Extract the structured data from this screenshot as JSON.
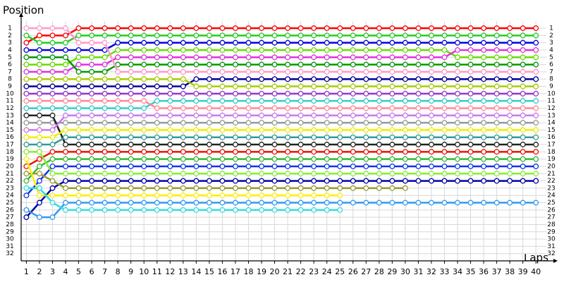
{
  "chart_data": {
    "type": "line",
    "y_label": "Position",
    "x_label": "Laps",
    "x": [
      1,
      2,
      3,
      4,
      5,
      6,
      7,
      8,
      9,
      10,
      11,
      12,
      13,
      14,
      15,
      16,
      17,
      18,
      19,
      20,
      21,
      22,
      23,
      24,
      25,
      26,
      27,
      28,
      29,
      30,
      31,
      32,
      33,
      34,
      35,
      36,
      37,
      38,
      39,
      40
    ],
    "xlim": [
      0.6,
      40.8
    ],
    "xticks": [
      1,
      2,
      3,
      4,
      5,
      6,
      7,
      8,
      9,
      10,
      11,
      12,
      13,
      14,
      15,
      16,
      17,
      18,
      19,
      20,
      21,
      22,
      23,
      24,
      25,
      26,
      27,
      28,
      29,
      30,
      31,
      32,
      33,
      34,
      35,
      36,
      37,
      38,
      39,
      40
    ],
    "ylim": [
      0,
      33
    ],
    "y_inverted": true,
    "yticks": [
      1,
      2,
      3,
      4,
      5,
      6,
      7,
      8,
      9,
      10,
      11,
      12,
      13,
      14,
      15,
      16,
      17,
      18,
      19,
      20,
      21,
      22,
      23,
      24,
      25,
      26,
      27,
      28,
      29,
      30,
      31,
      32
    ],
    "grid": true,
    "series": [
      {
        "color": "#ff0000",
        "values": [
          3,
          2,
          2,
          2,
          1,
          1,
          1,
          1,
          1,
          1,
          1,
          1,
          1,
          1,
          1,
          1,
          1,
          1,
          1,
          1,
          1,
          1,
          1,
          1,
          1,
          1,
          1,
          1,
          1,
          1,
          1,
          1,
          1,
          1,
          1,
          1,
          1,
          1,
          1,
          1
        ]
      },
      {
        "color": "#22cc22",
        "values": [
          2,
          3,
          3,
          3,
          2,
          2,
          2,
          2,
          2,
          2,
          2,
          2,
          2,
          2,
          2,
          2,
          2,
          2,
          2,
          2,
          2,
          2,
          2,
          2,
          2,
          2,
          2,
          2,
          2,
          2,
          2,
          2,
          2,
          2,
          2,
          2,
          2,
          2,
          2,
          2
        ]
      },
      {
        "color": "#0000dd",
        "values": [
          4,
          4,
          4,
          4,
          4,
          4,
          4,
          3,
          3,
          3,
          3,
          3,
          3,
          3,
          3,
          3,
          3,
          3,
          3,
          3,
          3,
          3,
          3,
          3,
          3,
          3,
          3,
          3,
          3,
          3,
          3,
          3,
          3,
          3,
          3,
          3,
          3,
          3,
          3,
          3
        ]
      },
      {
        "color": "#66dd00",
        "values": [
          6,
          6,
          6,
          6,
          5,
          5,
          5,
          4,
          4,
          4,
          4,
          4,
          4,
          4,
          4,
          4,
          4,
          4,
          4,
          4,
          4,
          4,
          4,
          4,
          4,
          4,
          4,
          4,
          4,
          4,
          4,
          4,
          4,
          5,
          5,
          5,
          5,
          5,
          5,
          5
        ]
      },
      {
        "color": "#dd33dd",
        "values": [
          7,
          7,
          7,
          7,
          6,
          6,
          6,
          5,
          5,
          5,
          5,
          5,
          5,
          5,
          5,
          5,
          5,
          5,
          5,
          5,
          5,
          5,
          5,
          5,
          5,
          5,
          5,
          5,
          5,
          5,
          5,
          5,
          5,
          4,
          4,
          4,
          4,
          4,
          4,
          4
        ]
      },
      {
        "color": "#009900",
        "values": [
          5,
          5,
          5,
          5,
          7,
          7,
          7,
          6,
          6,
          6,
          6,
          6,
          6,
          6,
          6,
          6,
          6,
          6,
          6,
          6,
          6,
          6,
          6,
          6,
          6,
          6,
          6,
          6,
          6,
          6,
          6,
          6,
          6,
          6,
          6,
          6,
          6,
          6,
          6,
          6
        ]
      },
      {
        "color": "#ff99cc",
        "values": [
          1,
          1,
          1,
          1,
          3,
          3,
          3,
          7,
          7,
          7,
          7,
          7,
          7,
          7,
          7,
          7,
          7,
          7,
          7,
          7,
          7,
          7,
          7,
          7,
          7,
          7,
          7,
          7,
          7,
          7,
          7,
          7,
          7,
          7,
          7,
          7,
          7,
          7,
          7,
          7
        ]
      },
      {
        "color": "#000099",
        "values": [
          9,
          9,
          9,
          9,
          9,
          9,
          9,
          9,
          9,
          9,
          9,
          9,
          9,
          8,
          8,
          8,
          8,
          8,
          8,
          8,
          8,
          8,
          8,
          8,
          8,
          8,
          8,
          8,
          8,
          8,
          8,
          8,
          8,
          8,
          8,
          8,
          8,
          8,
          8,
          8
        ]
      },
      {
        "color": "#aacc00",
        "values": [
          8,
          8,
          8,
          8,
          8,
          8,
          8,
          8,
          8,
          8,
          8,
          8,
          8,
          9,
          9,
          9,
          9,
          9,
          9,
          9,
          9,
          9,
          9,
          9,
          9,
          9,
          9,
          9,
          9,
          9,
          9,
          9,
          9,
          9,
          9,
          9,
          9,
          9,
          9,
          9
        ]
      },
      {
        "color": "#9933cc",
        "values": [
          10,
          10,
          10,
          10,
          10,
          10,
          10,
          10,
          10,
          10,
          10,
          10,
          10,
          10,
          10,
          10,
          10,
          10,
          10,
          10,
          10,
          10,
          10,
          10,
          10,
          10,
          10,
          10,
          10,
          10,
          10,
          10,
          10,
          10,
          10,
          10,
          10,
          10,
          10,
          10
        ]
      },
      {
        "color": "#33cccc",
        "values": [
          12,
          12,
          12,
          12,
          12,
          12,
          12,
          12,
          12,
          12,
          11,
          11,
          11,
          11,
          11,
          11,
          11,
          11,
          11,
          11,
          11,
          11,
          11,
          11,
          11,
          11,
          11,
          11,
          11,
          11,
          11,
          11,
          11,
          11,
          11,
          11,
          11,
          11,
          11,
          11
        ]
      },
      {
        "color": "#ff8899",
        "values": [
          11,
          11,
          11,
          11,
          11,
          11,
          11,
          11,
          11,
          11,
          12,
          12,
          12,
          12,
          12,
          12,
          12,
          12,
          12,
          12,
          12,
          12,
          12,
          12,
          12,
          12,
          12,
          12,
          12,
          12,
          12,
          12,
          12,
          12,
          12,
          12,
          12,
          12,
          12,
          12
        ]
      },
      {
        "color": "#999999",
        "values": [
          14,
          14,
          14,
          14,
          14,
          14,
          14,
          14,
          14,
          14,
          14,
          14,
          14,
          14,
          14,
          14,
          14,
          14,
          14,
          14,
          14,
          14,
          14,
          14,
          14,
          14,
          14,
          14,
          14,
          14,
          14,
          14,
          14,
          14,
          14,
          14,
          14,
          14,
          14,
          14
        ]
      },
      {
        "color": "#222222",
        "values": [
          13,
          13,
          13,
          17,
          17,
          17,
          17,
          17,
          17,
          17,
          17,
          17,
          17,
          17,
          17,
          17,
          17,
          17,
          17,
          17,
          17,
          17,
          17,
          17,
          17,
          17,
          17,
          17,
          17,
          17,
          17,
          17,
          17,
          17,
          17,
          17,
          17,
          17,
          17,
          17
        ]
      },
      {
        "color": "#cc77ee",
        "values": [
          15,
          15,
          15,
          13,
          13,
          13,
          13,
          13,
          13,
          13,
          13,
          13,
          13,
          13,
          13,
          13,
          13,
          13,
          13,
          13,
          13,
          13,
          13,
          13,
          13,
          13,
          13,
          13,
          13,
          13,
          13,
          13,
          13,
          13,
          13,
          13,
          13,
          13,
          13,
          13
        ]
      },
      {
        "color": "#eeee00",
        "values": [
          16,
          16,
          16,
          15,
          15,
          15,
          15,
          15,
          15,
          15,
          15,
          15,
          15,
          15,
          15,
          15,
          15,
          15,
          15,
          15,
          15,
          15,
          15,
          15,
          15,
          15,
          15,
          15,
          15,
          15,
          15,
          15,
          15,
          15,
          15,
          15,
          15,
          15,
          15,
          15
        ]
      },
      {
        "color": "#339999",
        "values": [
          17,
          17,
          17,
          16,
          16,
          16,
          16,
          16,
          16,
          16,
          16,
          16,
          16,
          16,
          16,
          16,
          16,
          16,
          16,
          16,
          16,
          16,
          16,
          16,
          16,
          16,
          16,
          16,
          16,
          16,
          16,
          16,
          16,
          16,
          16,
          16,
          16,
          16,
          16,
          16
        ]
      },
      {
        "color": "#ee1100",
        "values": [
          20,
          19,
          18,
          18,
          18,
          18,
          18,
          18,
          18,
          18,
          18,
          18,
          18,
          18,
          18,
          18,
          18,
          18,
          18,
          18,
          18,
          18,
          18,
          18,
          18,
          18,
          18,
          18,
          18,
          18,
          18,
          18,
          18,
          18,
          18,
          18,
          18,
          18,
          18,
          18
        ]
      },
      {
        "color": "#33bb33",
        "values": [
          22,
          20,
          19,
          19,
          19,
          19,
          19,
          19,
          19,
          19,
          19,
          19,
          19,
          19,
          19,
          19,
          19,
          19,
          19,
          19,
          19,
          19,
          19,
          19,
          19,
          19,
          19,
          19,
          19,
          19,
          19,
          19,
          19,
          19,
          19,
          19,
          19,
          19,
          19,
          19
        ]
      },
      {
        "color": "#1133ee",
        "values": [
          24,
          22,
          20,
          20,
          20,
          20,
          20,
          20,
          20,
          20,
          20,
          20,
          20,
          20,
          20,
          20,
          20,
          20,
          20,
          20,
          20,
          20,
          20,
          20,
          20,
          20,
          20,
          20,
          20,
          20,
          20,
          20,
          20,
          20,
          20,
          20,
          20,
          20,
          20,
          20
        ]
      },
      {
        "color": "#88ee33",
        "values": [
          18,
          18,
          21,
          21,
          21,
          21,
          21,
          21,
          21,
          21,
          21,
          21,
          21,
          21,
          21,
          21,
          21,
          21,
          21,
          21,
          21,
          21,
          21,
          21,
          21,
          21,
          21,
          21,
          21,
          21,
          21,
          21,
          21,
          21,
          21,
          21,
          21,
          21,
          21,
          21
        ]
      },
      {
        "color": "#0000aa",
        "values": [
          27,
          25,
          23,
          22,
          22,
          22,
          22,
          22,
          22,
          22,
          22,
          22,
          22,
          22,
          22,
          22,
          22,
          22,
          22,
          22,
          22,
          22,
          22,
          22,
          22,
          22,
          22,
          22,
          22,
          22,
          22,
          22,
          22,
          22,
          22,
          22,
          22,
          22,
          22,
          22
        ]
      },
      {
        "color": "#999933",
        "values": [
          21,
          21,
          22,
          23,
          23,
          23,
          23,
          23,
          23,
          23,
          23,
          23,
          23,
          23,
          23,
          23,
          23,
          23,
          23,
          23,
          23,
          23,
          23,
          23,
          23,
          23,
          23,
          23,
          23,
          23,
          null,
          null,
          null,
          null,
          null,
          null,
          null,
          null,
          null,
          null
        ]
      },
      {
        "color": "#ffee00",
        "values": [
          19,
          24,
          24,
          24,
          24,
          24,
          24,
          24,
          24,
          24,
          24,
          24,
          24,
          24,
          24,
          24,
          24,
          24,
          24,
          24,
          24,
          24,
          24,
          24,
          24,
          null,
          null,
          null,
          null,
          null,
          null,
          null,
          null,
          null,
          null,
          null,
          null,
          null,
          null,
          null
        ]
      },
      {
        "color": "#3399ee",
        "values": [
          26,
          27,
          27,
          25,
          25,
          25,
          25,
          25,
          25,
          25,
          25,
          25,
          25,
          25,
          25,
          25,
          25,
          25,
          25,
          25,
          25,
          25,
          25,
          25,
          25,
          25,
          25,
          25,
          25,
          25,
          25,
          25,
          25,
          25,
          25,
          25,
          25,
          25,
          25,
          25
        ]
      },
      {
        "color": "#33dddd",
        "values": [
          23,
          23,
          25,
          26,
          26,
          26,
          26,
          26,
          26,
          26,
          26,
          26,
          26,
          26,
          26,
          26,
          26,
          26,
          26,
          26,
          26,
          26,
          26,
          26,
          26,
          null,
          null,
          null,
          null,
          null,
          null,
          null,
          null,
          null,
          null,
          null,
          null,
          null,
          null,
          null
        ]
      }
    ]
  }
}
